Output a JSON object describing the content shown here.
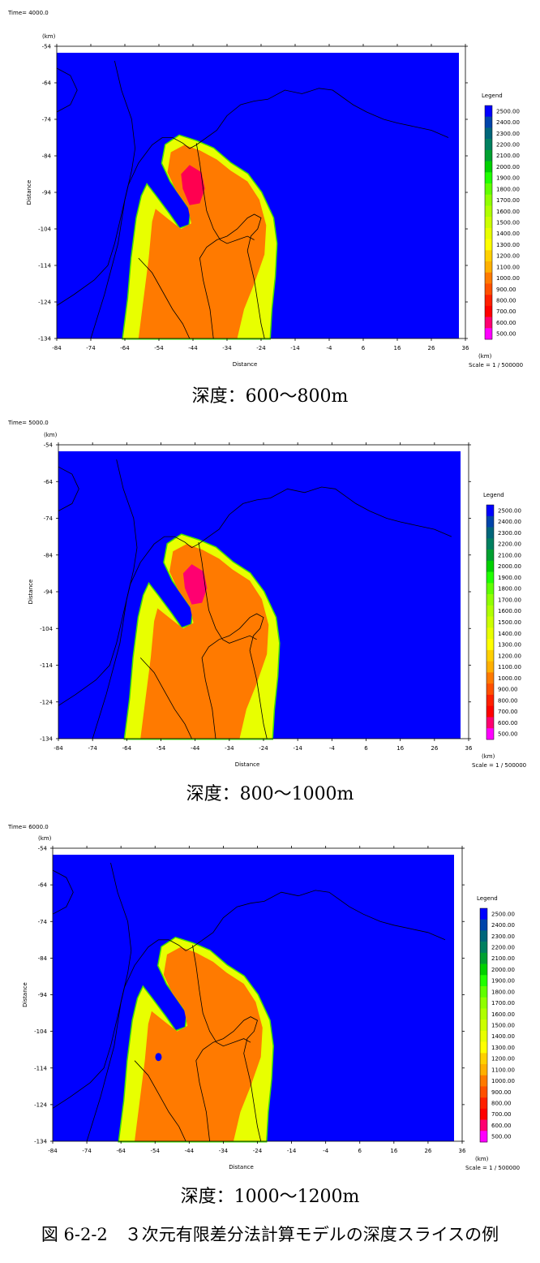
{
  "panels": [
    {
      "time": "Time= 4000.0",
      "caption": "深度：600～800m"
    },
    {
      "time": "Time= 5000.0",
      "caption": "深度：800～1000m"
    },
    {
      "time": "Time= 6000.0",
      "caption": "深度：1000～1200m"
    }
  ],
  "figure_caption": "図 6-2-2　３次元有限差分法計算モデルの深度スライスの例",
  "chart_data": {
    "type": "heatmap",
    "x_unit": "(km)",
    "y_unit": "(km)",
    "xlabel": "Distance",
    "ylabel": "Distance",
    "x_ticks": [
      -84,
      -74,
      -64,
      -54,
      -44,
      -34,
      -24,
      -14,
      -4,
      6,
      16,
      26,
      36
    ],
    "y_ticks": [
      -54,
      -64,
      -74,
      -84,
      -94,
      -104,
      -114,
      -124,
      -134
    ],
    "xlim": [
      -84,
      36
    ],
    "ylim": [
      -134,
      -54
    ],
    "scale": "Scale = 1 / 500000",
    "legend_title": "Legend",
    "legend_values": [
      "2500.00",
      "2400.00",
      "2300.00",
      "2200.00",
      "2100.00",
      "2000.00",
      "1900.00",
      "1800.00",
      "1700.00",
      "1600.00",
      "1500.00",
      "1400.00",
      "1300.00",
      "1200.00",
      "1100.00",
      "1000.00",
      "900.00",
      "800.00",
      "700.00",
      "600.00",
      "500.00"
    ],
    "legend_colors": [
      "#0000ff",
      "#0044aa",
      "#00667a",
      "#008060",
      "#00a030",
      "#00d000",
      "#20ff00",
      "#60ff00",
      "#90ff00",
      "#b0ff00",
      "#ccff00",
      "#e8ff00",
      "#ffff00",
      "#ffd000",
      "#ffb000",
      "#ff7a00",
      "#ff5000",
      "#ff2000",
      "#ff0000",
      "#ff0070",
      "#ff00ff"
    ]
  }
}
